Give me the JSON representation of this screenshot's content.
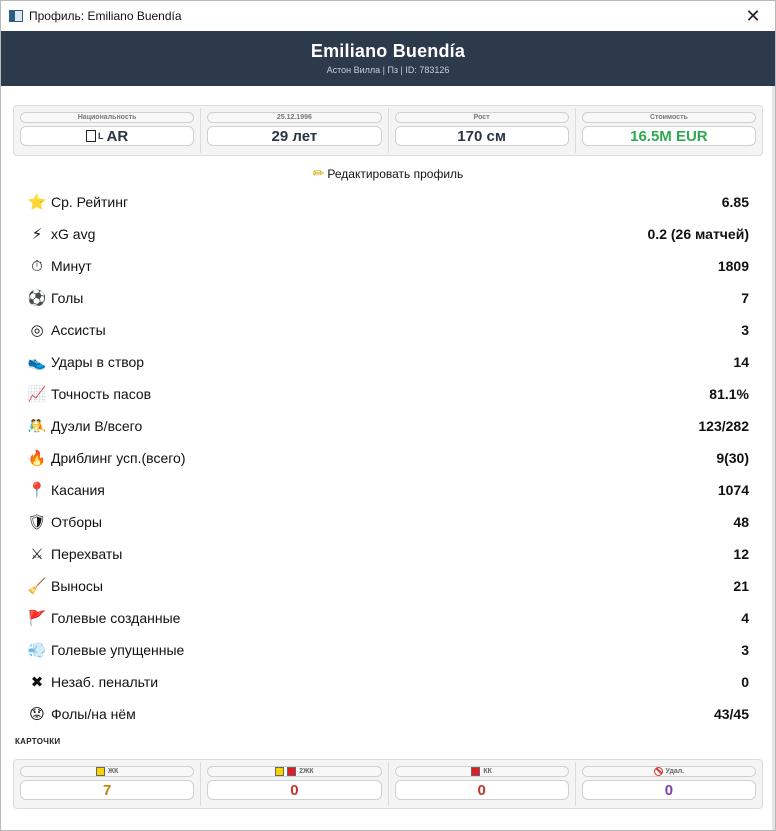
{
  "window": {
    "title": "Профиль: Emiliano Buendía",
    "close_glyph": "✕"
  },
  "header": {
    "name": "Emiliano Buendía",
    "subtitle": "Астон Вилла | Пз | ID: 783126"
  },
  "info": [
    {
      "key": "nationality",
      "label": "Национальность",
      "value": "AR",
      "flag_prefix": "L"
    },
    {
      "key": "birthdate",
      "label": "25.12.1996",
      "value": "29 лет"
    },
    {
      "key": "height",
      "label": "Рост",
      "value": "170 см"
    },
    {
      "key": "value",
      "label": "Стоимость",
      "value": "16.5M EUR",
      "color": "#2fa84f"
    }
  ],
  "edit_profile_label": "Редактировать профиль",
  "stats": [
    {
      "icon": "star-icon",
      "glyph": "⭐",
      "label": "Ср. Рейтинг",
      "value": "6.85"
    },
    {
      "icon": "lightning-icon",
      "glyph": "⚡",
      "label": "xG avg",
      "value": "0.2 (26 матчей)"
    },
    {
      "icon": "stopwatch-icon",
      "glyph": "⏱",
      "label": "Минут",
      "value": "1809"
    },
    {
      "icon": "soccer-ball-icon",
      "glyph": "⚽",
      "label": "Голы",
      "value": "7"
    },
    {
      "icon": "target-icon",
      "glyph": "◎",
      "label": "Ассисты",
      "value": "3"
    },
    {
      "icon": "shoe-icon",
      "glyph": "👟",
      "label": "Удары в створ",
      "value": "14"
    },
    {
      "icon": "chart-increasing-icon",
      "glyph": "📈",
      "label": "Точность пасов",
      "value": "81.1%"
    },
    {
      "icon": "wrestlers-icon",
      "glyph": "🤼",
      "label": "Дуэли В/всего",
      "value": "123/282"
    },
    {
      "icon": "fire-icon",
      "glyph": "🔥",
      "label": "Дриблинг усп.(всего)",
      "value": "9(30)"
    },
    {
      "icon": "pushpin-icon",
      "glyph": "📍",
      "label": "Касания",
      "value": "1074"
    },
    {
      "icon": "shield-icon",
      "glyph": "🛡",
      "label": "Отборы",
      "value": "48"
    },
    {
      "icon": "crossed-swords-icon",
      "glyph": "⚔",
      "label": "Перехваты",
      "value": "12"
    },
    {
      "icon": "broom-icon",
      "glyph": "🧹",
      "label": "Выносы",
      "value": "21"
    },
    {
      "icon": "flag-icon",
      "glyph": "🚩",
      "label": "Голевые созданные",
      "value": "4"
    },
    {
      "icon": "dash-away-icon",
      "glyph": "💨",
      "label": "Голевые упущенные",
      "value": "3"
    },
    {
      "icon": "cross-mark-icon",
      "glyph": "✖",
      "label": "Незаб. пенальти",
      "value": "0"
    },
    {
      "icon": "worried-face-icon",
      "glyph": "😟",
      "label": "Фолы/на нём",
      "value": "43/45"
    }
  ],
  "cards": {
    "title": "КАРТОЧКИ",
    "items": [
      {
        "key": "yellow",
        "label": "ЖК",
        "value": "7",
        "color": "#b8860b"
      },
      {
        "key": "second-yellow",
        "label": "2ЖК",
        "value": "0",
        "color": "#c0392b"
      },
      {
        "key": "red",
        "label": "КК",
        "value": "0",
        "color": "#c0392b"
      },
      {
        "key": "sent-off",
        "label": "Удал.",
        "value": "0",
        "color": "#7a3fb0"
      }
    ]
  }
}
